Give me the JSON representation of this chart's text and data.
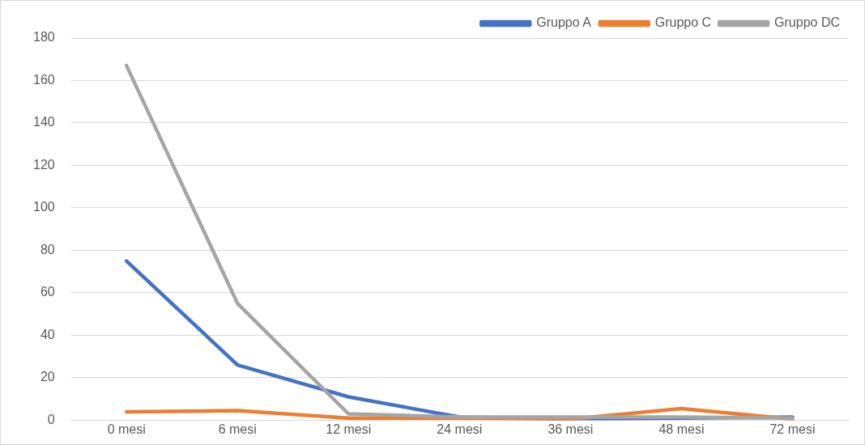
{
  "chart_data": {
    "type": "line",
    "categories": [
      "0 mesi",
      "6 mesi",
      "12 mesi",
      "24 mesi",
      "36 mesi",
      "48 mesi",
      "72 mesi"
    ],
    "series": [
      {
        "name": "Gruppo A",
        "color": "#4472c4",
        "values": [
          75,
          26,
          11,
          1.5,
          0.5,
          1,
          1.5
        ]
      },
      {
        "name": "Gruppo C",
        "color": "#ed7d31",
        "values": [
          4,
          4.5,
          1,
          1,
          0.5,
          5.5,
          0.5
        ]
      },
      {
        "name": "Gruppo DC",
        "color": "#a5a5a5",
        "values": [
          167,
          55,
          3,
          1.5,
          1.5,
          1.5,
          1
        ]
      }
    ],
    "ylim": [
      0,
      180
    ],
    "yticks": [
      0,
      20,
      40,
      60,
      80,
      100,
      120,
      140,
      160,
      180
    ],
    "grid": "y",
    "legend": "top right",
    "marker": "none",
    "line_style": "solid"
  }
}
